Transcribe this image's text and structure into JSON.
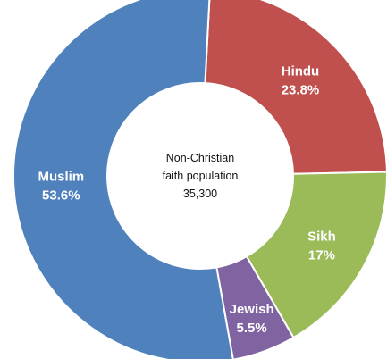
{
  "chart_data": {
    "type": "pie",
    "variant": "donut",
    "center_label": [
      "Non-Christian",
      "faith population",
      "35,300"
    ],
    "slices": [
      {
        "name": "Hindu",
        "value": 23.8,
        "label": "23.8%",
        "color": "#c0504d"
      },
      {
        "name": "Sikh",
        "value": 17,
        "label": "17%",
        "color": "#9bbb59"
      },
      {
        "name": "Jewish",
        "value": 5.5,
        "label": "5.5%",
        "color": "#8064a2"
      },
      {
        "name": "Muslim",
        "value": 53.6,
        "label": "53.6%",
        "color": "#4f81bd"
      }
    ],
    "legend": "none"
  }
}
